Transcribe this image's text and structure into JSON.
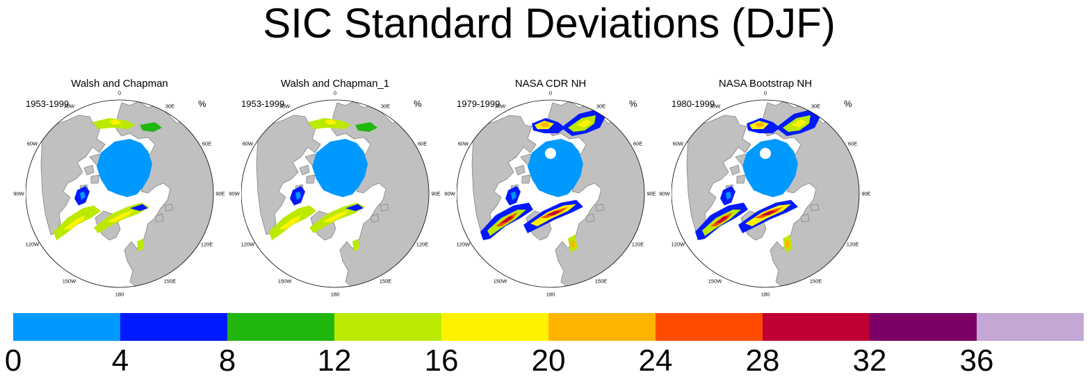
{
  "title": "SIC Standard Deviations (DJF)",
  "panels": [
    {
      "title": "Walsh and Chapman",
      "period": "1953-1999",
      "units": "%",
      "dataset": "wc"
    },
    {
      "title": "Walsh and Chapman_1",
      "period": "1953-1999",
      "units": "%",
      "dataset": "wc"
    },
    {
      "title": "NASA CDR NH",
      "period": "1979-1999",
      "units": "%",
      "dataset": "nasa"
    },
    {
      "title": "NASA Bootstrap NH",
      "period": "1980-1999",
      "units": "%",
      "dataset": "nasa"
    }
  ],
  "longitude_labels": [
    "180",
    "150E",
    "120E",
    "90E",
    "60E",
    "30E",
    "0",
    "30W",
    "60W",
    "90W",
    "120W",
    "150W"
  ],
  "colorbar": {
    "labels": [
      "0",
      "4",
      "8",
      "12",
      "16",
      "20",
      "24",
      "28",
      "32",
      "36"
    ],
    "colors": [
      "#0099ff",
      "#0019ff",
      "#21b70e",
      "#bbe900",
      "#fff200",
      "#ffb400",
      "#ff4b00",
      "#c00032",
      "#7c0066",
      "#c3a8d6"
    ]
  },
  "map_colors": {
    "land": "#c0c0c0",
    "coast": "#808080",
    "ocean": "#ffffff"
  }
}
